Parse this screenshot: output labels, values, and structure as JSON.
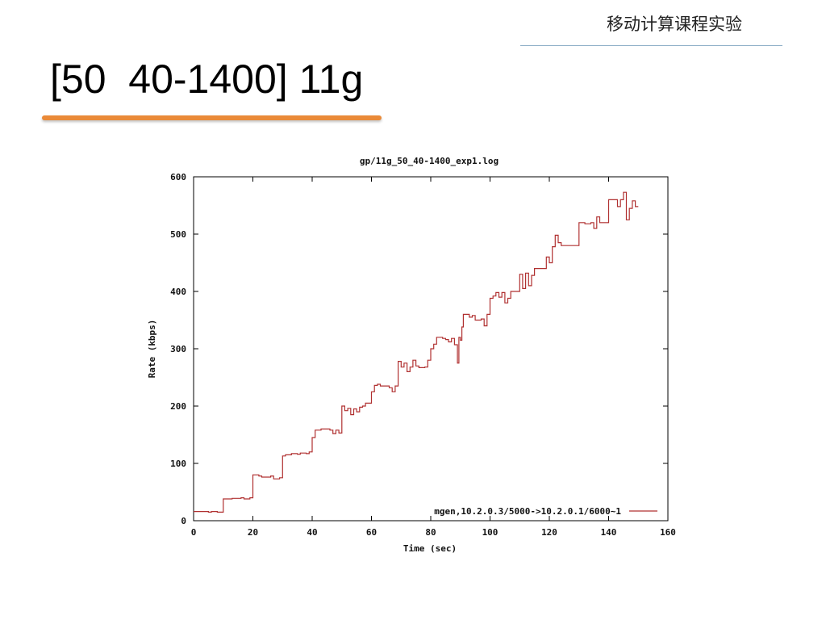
{
  "slide": {
    "header": "移动计算课程实验",
    "title": "[50  40-1400] 11g"
  },
  "colors": {
    "line": "#b03030",
    "accent": "#ea8a38",
    "rule": "#8fb0c8"
  },
  "chart_data": {
    "type": "line",
    "title": "gp/11g_50_40-1400_exp1.log",
    "xlabel": "Time (sec)",
    "ylabel": "Rate (kbps)",
    "xlim": [
      0,
      160
    ],
    "ylim": [
      0,
      600
    ],
    "xticks": [
      0,
      20,
      40,
      60,
      80,
      100,
      120,
      140,
      160
    ],
    "yticks": [
      0,
      100,
      200,
      300,
      400,
      500,
      600
    ],
    "grid": false,
    "legend": "bottom-right",
    "series": [
      {
        "name": "mgen,10.2.0.3/5000->10.2.0.1/6000~1",
        "step": true,
        "points": [
          [
            0,
            16
          ],
          [
            5,
            15
          ],
          [
            6,
            16
          ],
          [
            8,
            15
          ],
          [
            10,
            38
          ],
          [
            13,
            39
          ],
          [
            16,
            40
          ],
          [
            17,
            38
          ],
          [
            19,
            40
          ],
          [
            20,
            80
          ],
          [
            22,
            78
          ],
          [
            23,
            76
          ],
          [
            26,
            78
          ],
          [
            27,
            73
          ],
          [
            29,
            75
          ],
          [
            30,
            113
          ],
          [
            31,
            115
          ],
          [
            33,
            117
          ],
          [
            35,
            116
          ],
          [
            36,
            118
          ],
          [
            38,
            117
          ],
          [
            39,
            120
          ],
          [
            40,
            145
          ],
          [
            41,
            158
          ],
          [
            43,
            160
          ],
          [
            46,
            158
          ],
          [
            47,
            152
          ],
          [
            48,
            158
          ],
          [
            49,
            153
          ],
          [
            50,
            200
          ],
          [
            51,
            192
          ],
          [
            52,
            196
          ],
          [
            53,
            185
          ],
          [
            54,
            195
          ],
          [
            55,
            190
          ],
          [
            56,
            198
          ],
          [
            57,
            200
          ],
          [
            58,
            205
          ],
          [
            60,
            225
          ],
          [
            61,
            236
          ],
          [
            62,
            238
          ],
          [
            63,
            235
          ],
          [
            66,
            232
          ],
          [
            67,
            225
          ],
          [
            68,
            235
          ],
          [
            69,
            278
          ],
          [
            70,
            268
          ],
          [
            71,
            275
          ],
          [
            72,
            260
          ],
          [
            73,
            268
          ],
          [
            74,
            280
          ],
          [
            75,
            270
          ],
          [
            76,
            267
          ],
          [
            78,
            268
          ],
          [
            79,
            280
          ],
          [
            80,
            300
          ],
          [
            81,
            308
          ],
          [
            82,
            320
          ],
          [
            84,
            318
          ],
          [
            85,
            316
          ],
          [
            86,
            312
          ],
          [
            87,
            318
          ],
          [
            88,
            307
          ],
          [
            89,
            275
          ],
          [
            89.5,
            320
          ],
          [
            90,
            315
          ],
          [
            90.5,
            338
          ],
          [
            91,
            360
          ],
          [
            93,
            355
          ],
          [
            94,
            358
          ],
          [
            95,
            350
          ],
          [
            97,
            352
          ],
          [
            98,
            340
          ],
          [
            99,
            360
          ],
          [
            100,
            388
          ],
          [
            101,
            392
          ],
          [
            102,
            398
          ],
          [
            103,
            390
          ],
          [
            104,
            398
          ],
          [
            105,
            380
          ],
          [
            106,
            388
          ],
          [
            107,
            400
          ],
          [
            110,
            430
          ],
          [
            111,
            405
          ],
          [
            112,
            432
          ],
          [
            113,
            410
          ],
          [
            114,
            428
          ],
          [
            115,
            440
          ],
          [
            119,
            460
          ],
          [
            120,
            450
          ],
          [
            121,
            478
          ],
          [
            122,
            498
          ],
          [
            123,
            485
          ],
          [
            124,
            480
          ],
          [
            130,
            520
          ],
          [
            132,
            518
          ],
          [
            134,
            520
          ],
          [
            135,
            510
          ],
          [
            136,
            530
          ],
          [
            137,
            520
          ],
          [
            140,
            560
          ],
          [
            143,
            548
          ],
          [
            144,
            560
          ],
          [
            145,
            573
          ],
          [
            146,
            525
          ],
          [
            147,
            545
          ],
          [
            148,
            558
          ],
          [
            149,
            548
          ],
          [
            150,
            548
          ]
        ]
      }
    ]
  }
}
